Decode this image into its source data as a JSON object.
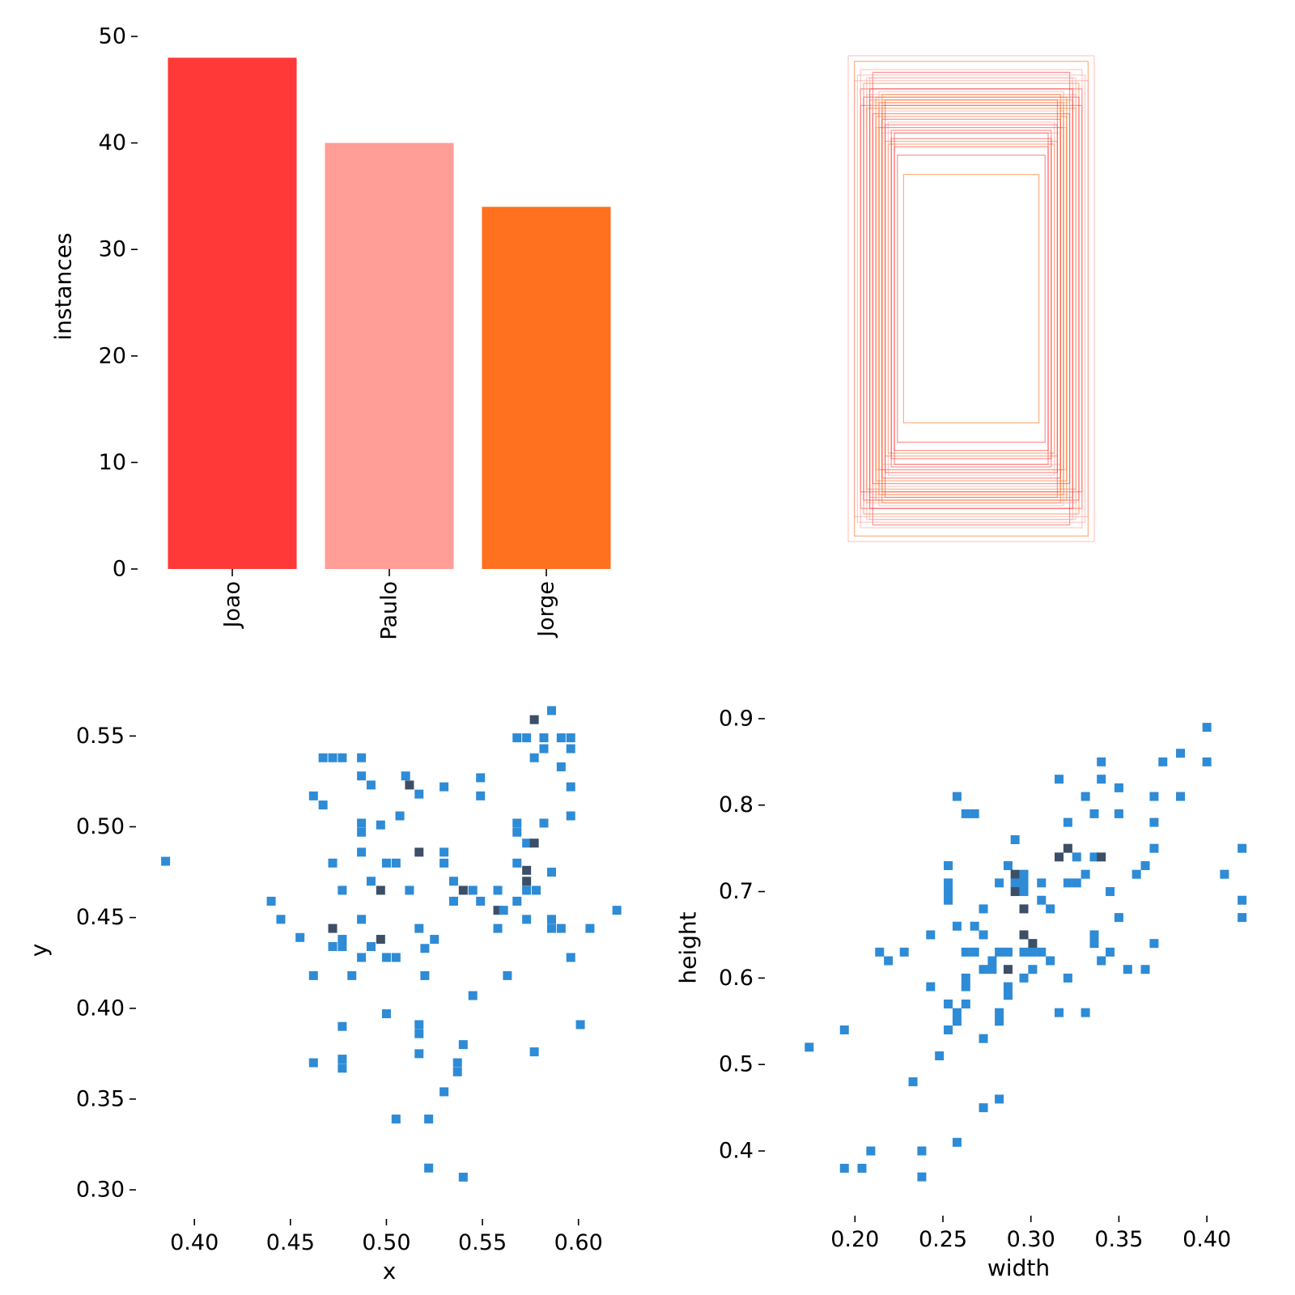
{
  "chart_data": [
    {
      "type": "bar",
      "categories": [
        "Joao",
        "Paulo",
        "Jorge"
      ],
      "values": [
        48,
        40,
        34
      ],
      "colors": [
        "#ff3838",
        "#ff9d97",
        "#ff701f"
      ],
      "xlabel": "",
      "ylabel": "instances",
      "ylim": [
        0,
        50
      ],
      "yticks": [
        "0",
        "10",
        "20",
        "30",
        "40",
        "50"
      ],
      "grid": false
    },
    {
      "type": "scatter",
      "description_type": "overlaid bounding boxes (width, height), all centered",
      "stroke_colors": [
        "#ff3838",
        "#ff9d97",
        "#ff701f"
      ],
      "boxes": [
        [
          0.32,
          0.82
        ],
        [
          0.34,
          0.74
        ],
        [
          0.29,
          0.7
        ],
        [
          0.36,
          0.76
        ],
        [
          0.31,
          0.62
        ],
        [
          0.27,
          0.56
        ],
        [
          0.26,
          0.61
        ],
        [
          0.33,
          0.8
        ],
        [
          0.38,
          0.86
        ],
        [
          0.28,
          0.72
        ],
        [
          0.3,
          0.68
        ],
        [
          0.35,
          0.78
        ],
        [
          0.25,
          0.55
        ],
        [
          0.37,
          0.81
        ],
        [
          0.22,
          0.45
        ],
        [
          0.24,
          0.52
        ],
        [
          0.29,
          0.6
        ],
        [
          0.33,
          0.72
        ],
        [
          0.36,
          0.7
        ],
        [
          0.3,
          0.75
        ],
        [
          0.31,
          0.66
        ],
        [
          0.28,
          0.63
        ],
        [
          0.4,
          0.88
        ],
        [
          0.34,
          0.69
        ],
        [
          0.26,
          0.58
        ],
        [
          0.32,
          0.71
        ],
        [
          0.29,
          0.74
        ],
        [
          0.35,
          0.73
        ],
        [
          0.27,
          0.64
        ],
        [
          0.3,
          0.62
        ],
        [
          0.33,
          0.76
        ],
        [
          0.38,
          0.79
        ],
        [
          0.31,
          0.73
        ],
        [
          0.25,
          0.6
        ],
        [
          0.36,
          0.83
        ],
        [
          0.28,
          0.57
        ],
        [
          0.32,
          0.67
        ],
        [
          0.34,
          0.8
        ],
        [
          0.3,
          0.71
        ],
        [
          0.29,
          0.65
        ]
      ],
      "xlim": [
        0,
        1
      ],
      "ylim": [
        0,
        1
      ]
    },
    {
      "type": "heatmap",
      "description_type": "2D histogram of box centers",
      "xlabel": "x",
      "ylabel": "y",
      "xticks": [
        "0.40",
        "0.45",
        "0.50",
        "0.55",
        "0.60"
      ],
      "yticks": [
        "0.30",
        "0.35",
        "0.40",
        "0.45",
        "0.50",
        "0.55"
      ],
      "xlim": [
        0.378,
        0.625
      ],
      "ylim": [
        0.292,
        0.572
      ],
      "color_low": "#2e8bd6",
      "color_high": "#3d4f67",
      "points": [
        [
          0.385,
          0.481
        ],
        [
          0.44,
          0.459
        ],
        [
          0.445,
          0.449
        ],
        [
          0.455,
          0.439
        ],
        [
          0.462,
          0.418
        ],
        [
          0.462,
          0.37
        ],
        [
          0.462,
          0.517
        ],
        [
          0.467,
          0.512
        ],
        [
          0.467,
          0.538
        ],
        [
          0.472,
          0.538
        ],
        [
          0.477,
          0.538
        ],
        [
          0.472,
          0.48
        ],
        [
          0.477,
          0.465
        ],
        [
          0.472,
          0.434
        ],
        [
          0.477,
          0.434
        ],
        [
          0.472,
          0.444,
          2
        ],
        [
          0.477,
          0.438
        ],
        [
          0.477,
          0.39
        ],
        [
          0.477,
          0.372
        ],
        [
          0.477,
          0.367
        ],
        [
          0.482,
          0.418
        ],
        [
          0.487,
          0.538
        ],
        [
          0.487,
          0.528
        ],
        [
          0.492,
          0.523
        ],
        [
          0.487,
          0.502
        ],
        [
          0.487,
          0.497
        ],
        [
          0.487,
          0.486
        ],
        [
          0.487,
          0.449
        ],
        [
          0.487,
          0.428
        ],
        [
          0.492,
          0.47
        ],
        [
          0.492,
          0.434
        ],
        [
          0.497,
          0.465,
          2
        ],
        [
          0.497,
          0.438,
          2
        ],
        [
          0.497,
          0.501
        ],
        [
          0.5,
          0.48
        ],
        [
          0.505,
          0.48
        ],
        [
          0.5,
          0.428
        ],
        [
          0.505,
          0.428
        ],
        [
          0.5,
          0.397
        ],
        [
          0.505,
          0.339
        ],
        [
          0.507,
          0.506
        ],
        [
          0.51,
          0.528
        ],
        [
          0.512,
          0.523,
          2
        ],
        [
          0.512,
          0.465
        ],
        [
          0.517,
          0.486,
          2
        ],
        [
          0.517,
          0.518
        ],
        [
          0.517,
          0.444
        ],
        [
          0.517,
          0.391
        ],
        [
          0.517,
          0.386
        ],
        [
          0.517,
          0.375
        ],
        [
          0.52,
          0.433
        ],
        [
          0.52,
          0.418
        ],
        [
          0.522,
          0.339
        ],
        [
          0.522,
          0.312
        ],
        [
          0.525,
          0.438
        ],
        [
          0.53,
          0.486
        ],
        [
          0.53,
          0.48
        ],
        [
          0.53,
          0.522
        ],
        [
          0.53,
          0.354
        ],
        [
          0.535,
          0.47
        ],
        [
          0.535,
          0.459
        ],
        [
          0.537,
          0.37
        ],
        [
          0.537,
          0.365
        ],
        [
          0.54,
          0.465,
          2
        ],
        [
          0.54,
          0.38
        ],
        [
          0.54,
          0.307
        ],
        [
          0.545,
          0.465
        ],
        [
          0.545,
          0.407
        ],
        [
          0.549,
          0.527
        ],
        [
          0.549,
          0.517
        ],
        [
          0.549,
          0.459
        ],
        [
          0.558,
          0.465
        ],
        [
          0.558,
          0.454,
          2
        ],
        [
          0.558,
          0.444
        ],
        [
          0.561,
          0.454
        ],
        [
          0.563,
          0.418
        ],
        [
          0.568,
          0.549
        ],
        [
          0.573,
          0.549
        ],
        [
          0.568,
          0.502
        ],
        [
          0.568,
          0.497
        ],
        [
          0.568,
          0.48
        ],
        [
          0.568,
          0.459
        ],
        [
          0.573,
          0.465
        ],
        [
          0.573,
          0.491
        ],
        [
          0.573,
          0.476,
          2
        ],
        [
          0.573,
          0.47,
          2
        ],
        [
          0.573,
          0.449
        ],
        [
          0.578,
          0.465
        ],
        [
          0.577,
          0.491,
          2
        ],
        [
          0.577,
          0.538
        ],
        [
          0.577,
          0.559,
          2
        ],
        [
          0.577,
          0.376
        ],
        [
          0.582,
          0.549
        ],
        [
          0.582,
          0.543
        ],
        [
          0.582,
          0.502
        ],
        [
          0.586,
          0.564
        ],
        [
          0.586,
          0.475
        ],
        [
          0.586,
          0.449
        ],
        [
          0.586,
          0.444
        ],
        [
          0.591,
          0.444
        ],
        [
          0.591,
          0.549
        ],
        [
          0.591,
          0.533
        ],
        [
          0.596,
          0.549
        ],
        [
          0.596,
          0.543
        ],
        [
          0.596,
          0.522
        ],
        [
          0.596,
          0.506
        ],
        [
          0.596,
          0.428
        ],
        [
          0.601,
          0.391
        ],
        [
          0.606,
          0.444
        ],
        [
          0.62,
          0.454
        ]
      ]
    },
    {
      "type": "heatmap",
      "description_type": "2D histogram of box sizes",
      "xlabel": "width",
      "ylabel": "height",
      "xticks": [
        "0.20",
        "0.25",
        "0.30",
        "0.35",
        "0.40"
      ],
      "yticks": [
        "0.4",
        "0.5",
        "0.6",
        "0.7",
        "0.8",
        "0.9"
      ],
      "xlim": [
        0.158,
        0.428
      ],
      "ylim": [
        0.342,
        0.928
      ],
      "color_low": "#2e8bd6",
      "color_high": "#3d4f67",
      "points": [
        [
          0.174,
          0.52
        ],
        [
          0.194,
          0.54
        ],
        [
          0.194,
          0.38
        ],
        [
          0.204,
          0.38
        ],
        [
          0.209,
          0.4
        ],
        [
          0.214,
          0.63
        ],
        [
          0.219,
          0.62
        ],
        [
          0.228,
          0.63
        ],
        [
          0.233,
          0.48
        ],
        [
          0.238,
          0.4
        ],
        [
          0.238,
          0.37
        ],
        [
          0.243,
          0.65
        ],
        [
          0.243,
          0.59
        ],
        [
          0.248,
          0.51
        ],
        [
          0.253,
          0.73
        ],
        [
          0.253,
          0.71
        ],
        [
          0.253,
          0.7
        ],
        [
          0.253,
          0.69
        ],
        [
          0.253,
          0.57
        ],
        [
          0.253,
          0.54
        ],
        [
          0.258,
          0.81
        ],
        [
          0.258,
          0.66
        ],
        [
          0.258,
          0.56
        ],
        [
          0.258,
          0.55
        ],
        [
          0.258,
          0.41
        ],
        [
          0.263,
          0.79
        ],
        [
          0.268,
          0.79
        ],
        [
          0.263,
          0.63
        ],
        [
          0.268,
          0.63
        ],
        [
          0.263,
          0.6
        ],
        [
          0.263,
          0.59
        ],
        [
          0.263,
          0.57
        ],
        [
          0.268,
          0.66
        ],
        [
          0.273,
          0.68
        ],
        [
          0.273,
          0.65
        ],
        [
          0.273,
          0.61
        ],
        [
          0.278,
          0.61
        ],
        [
          0.273,
          0.53
        ],
        [
          0.273,
          0.45
        ],
        [
          0.278,
          0.62
        ],
        [
          0.282,
          0.63
        ],
        [
          0.282,
          0.56
        ],
        [
          0.282,
          0.55
        ],
        [
          0.282,
          0.46
        ],
        [
          0.282,
          0.71
        ],
        [
          0.287,
          0.73
        ],
        [
          0.287,
          0.63
        ],
        [
          0.287,
          0.61,
          2
        ],
        [
          0.287,
          0.59
        ],
        [
          0.287,
          0.58
        ],
        [
          0.291,
          0.76
        ],
        [
          0.291,
          0.72,
          2
        ],
        [
          0.291,
          0.71
        ],
        [
          0.291,
          0.7,
          2
        ],
        [
          0.296,
          0.72
        ],
        [
          0.296,
          0.71
        ],
        [
          0.296,
          0.7
        ],
        [
          0.296,
          0.68,
          2
        ],
        [
          0.296,
          0.65,
          2
        ],
        [
          0.296,
          0.63
        ],
        [
          0.296,
          0.6
        ],
        [
          0.301,
          0.64,
          2
        ],
        [
          0.301,
          0.63
        ],
        [
          0.301,
          0.61
        ],
        [
          0.306,
          0.71
        ],
        [
          0.306,
          0.69
        ],
        [
          0.306,
          0.63
        ],
        [
          0.311,
          0.68
        ],
        [
          0.311,
          0.62
        ],
        [
          0.316,
          0.83
        ],
        [
          0.316,
          0.74,
          2
        ],
        [
          0.316,
          0.56
        ],
        [
          0.321,
          0.78
        ],
        [
          0.321,
          0.75,
          2
        ],
        [
          0.321,
          0.71
        ],
        [
          0.321,
          0.6
        ],
        [
          0.326,
          0.71
        ],
        [
          0.326,
          0.74
        ],
        [
          0.331,
          0.81
        ],
        [
          0.331,
          0.72
        ],
        [
          0.331,
          0.56
        ],
        [
          0.336,
          0.79
        ],
        [
          0.336,
          0.74
        ],
        [
          0.336,
          0.65
        ],
        [
          0.336,
          0.64
        ],
        [
          0.34,
          0.85
        ],
        [
          0.34,
          0.83
        ],
        [
          0.34,
          0.74,
          2
        ],
        [
          0.34,
          0.62
        ],
        [
          0.345,
          0.7
        ],
        [
          0.345,
          0.63
        ],
        [
          0.35,
          0.82
        ],
        [
          0.35,
          0.79
        ],
        [
          0.35,
          0.67
        ],
        [
          0.355,
          0.61
        ],
        [
          0.36,
          0.72
        ],
        [
          0.365,
          0.73
        ],
        [
          0.365,
          0.61
        ],
        [
          0.37,
          0.81
        ],
        [
          0.37,
          0.78
        ],
        [
          0.37,
          0.75
        ],
        [
          0.37,
          0.64
        ],
        [
          0.375,
          0.85
        ],
        [
          0.385,
          0.86
        ],
        [
          0.385,
          0.81
        ],
        [
          0.4,
          0.89
        ],
        [
          0.4,
          0.85
        ],
        [
          0.41,
          0.72
        ],
        [
          0.42,
          0.75
        ],
        [
          0.42,
          0.69
        ],
        [
          0.42,
          0.67
        ]
      ]
    }
  ]
}
